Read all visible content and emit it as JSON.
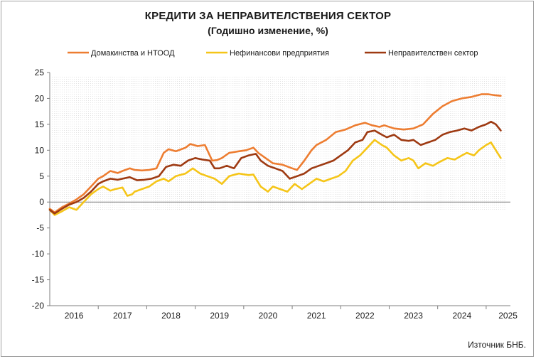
{
  "chart_data": {
    "type": "line",
    "title": "КРЕДИТИ ЗА НЕПРАВИТЕЛСТВЕНИЯ СЕКТОР",
    "subtitle": "(Годишно изменение, %)",
    "source": "Източник БНБ.",
    "ylim": [
      -20,
      25
    ],
    "yticks": [
      25,
      20,
      15,
      10,
      5,
      0,
      -5,
      -10,
      -15,
      -20
    ],
    "xlim": [
      2015.5,
      2025.0
    ],
    "xticks": [
      {
        "label": "2016",
        "pos": 2016.0
      },
      {
        "label": "2017",
        "pos": 2017.0
      },
      {
        "label": "2018",
        "pos": 2018.0
      },
      {
        "label": "2019",
        "pos": 2019.0
      },
      {
        "label": "2020",
        "pos": 2020.0
      },
      {
        "label": "2021",
        "pos": 2021.0
      },
      {
        "label": "2022",
        "pos": 2022.0
      },
      {
        "label": "2023",
        "pos": 2023.0
      },
      {
        "label": "2024",
        "pos": 2024.0
      },
      {
        "label": "2025",
        "pos": 2024.95
      }
    ],
    "grid": "vertical-dotted",
    "legend_position": "top",
    "series": [
      {
        "name": "Домакинства и НТООД",
        "color": "#ED7D31",
        "x": [
          2015.5,
          2015.6,
          2015.75,
          2015.9,
          2016.05,
          2016.2,
          2016.35,
          2016.5,
          2016.6,
          2016.75,
          2016.9,
          2017.0,
          2017.15,
          2017.25,
          2017.4,
          2017.55,
          2017.7,
          2017.85,
          2017.95,
          2018.1,
          2018.3,
          2018.4,
          2018.55,
          2018.7,
          2018.85,
          2018.95,
          2019.05,
          2019.2,
          2019.4,
          2019.55,
          2019.7,
          2019.8,
          2019.95,
          2020.1,
          2020.3,
          2020.5,
          2020.6,
          2020.75,
          2020.9,
          2021.0,
          2021.2,
          2021.4,
          2021.6,
          2021.8,
          2022.0,
          2022.15,
          2022.3,
          2022.4,
          2022.6,
          2022.8,
          2023.0,
          2023.2,
          2023.4,
          2023.6,
          2023.8,
          2024.0,
          2024.2,
          2024.4,
          2024.55,
          2024.7,
          2024.8
        ],
        "values": [
          -1.3,
          -2.0,
          -1.0,
          -0.3,
          0.5,
          1.5,
          3.0,
          4.5,
          5.0,
          6.0,
          5.6,
          6.0,
          6.5,
          6.2,
          6.1,
          6.2,
          6.5,
          9.5,
          10.2,
          9.8,
          10.5,
          11.2,
          10.8,
          11.0,
          8.0,
          8.1,
          8.5,
          9.5,
          9.8,
          10.0,
          10.5,
          9.5,
          8.5,
          7.5,
          7.2,
          6.5,
          6.2,
          8.0,
          10.0,
          11.0,
          12.0,
          13.5,
          14.0,
          14.8,
          15.3,
          14.8,
          14.5,
          14.8,
          14.2,
          14.0,
          14.2,
          15.0,
          17.0,
          18.5,
          19.5,
          20.0,
          20.3,
          20.8,
          20.8,
          20.6,
          20.5
        ]
      },
      {
        "name": "Нефинансови предприятия",
        "color": "#F5C518",
        "x": [
          2015.5,
          2015.6,
          2015.75,
          2015.9,
          2016.05,
          2016.2,
          2016.35,
          2016.5,
          2016.6,
          2016.75,
          2016.85,
          2017.0,
          2017.1,
          2017.2,
          2017.25,
          2017.4,
          2017.55,
          2017.7,
          2017.85,
          2017.95,
          2018.1,
          2018.3,
          2018.45,
          2018.6,
          2018.75,
          2018.9,
          2019.05,
          2019.2,
          2019.4,
          2019.6,
          2019.7,
          2019.85,
          2020.0,
          2020.1,
          2020.25,
          2020.4,
          2020.55,
          2020.7,
          2020.85,
          2021.0,
          2021.15,
          2021.3,
          2021.45,
          2021.6,
          2021.75,
          2021.9,
          2022.05,
          2022.2,
          2022.35,
          2022.45,
          2022.6,
          2022.75,
          2022.9,
          2023.0,
          2023.1,
          2023.25,
          2023.4,
          2023.55,
          2023.7,
          2023.85,
          2024.0,
          2024.1,
          2024.25,
          2024.35,
          2024.5,
          2024.6,
          2024.7,
          2024.8
        ],
        "values": [
          -1.5,
          -2.5,
          -1.8,
          -1.0,
          -1.5,
          0.0,
          1.5,
          2.5,
          3.0,
          2.2,
          2.5,
          2.8,
          1.2,
          1.5,
          2.0,
          2.5,
          3.0,
          4.0,
          4.5,
          4.0,
          5.0,
          5.5,
          6.5,
          5.5,
          5.0,
          4.5,
          3.5,
          5.0,
          5.5,
          5.2,
          5.3,
          3.0,
          2.0,
          3.0,
          2.5,
          2.0,
          3.5,
          2.5,
          3.5,
          4.5,
          4.0,
          4.5,
          5.0,
          6.0,
          8.0,
          9.0,
          10.5,
          12.0,
          11.0,
          10.5,
          9.0,
          8.0,
          8.5,
          8.0,
          6.5,
          7.5,
          7.0,
          7.8,
          8.5,
          8.2,
          9.0,
          9.5,
          9.0,
          10.0,
          11.0,
          11.5,
          10.0,
          8.5
        ]
      },
      {
        "name": "Неправителствен сектор",
        "color": "#9E3A12",
        "x": [
          2015.5,
          2015.6,
          2015.75,
          2015.9,
          2016.05,
          2016.2,
          2016.35,
          2016.5,
          2016.6,
          2016.75,
          2016.9,
          2017.0,
          2017.15,
          2017.3,
          2017.45,
          2017.6,
          2017.75,
          2017.9,
          2018.05,
          2018.2,
          2018.35,
          2018.5,
          2018.65,
          2018.8,
          2018.9,
          2019.0,
          2019.15,
          2019.3,
          2019.45,
          2019.6,
          2019.75,
          2019.85,
          2020.0,
          2020.15,
          2020.3,
          2020.45,
          2020.6,
          2020.75,
          2020.9,
          2021.05,
          2021.2,
          2021.35,
          2021.5,
          2021.65,
          2021.8,
          2021.95,
          2022.05,
          2022.2,
          2022.35,
          2022.45,
          2022.6,
          2022.75,
          2022.9,
          2023.0,
          2023.15,
          2023.3,
          2023.45,
          2023.6,
          2023.75,
          2023.9,
          2024.05,
          2024.2,
          2024.35,
          2024.5,
          2024.6,
          2024.7,
          2024.8
        ],
        "values": [
          -1.5,
          -2.2,
          -1.3,
          -0.5,
          0.0,
          0.8,
          2.0,
          3.5,
          4.0,
          4.5,
          4.3,
          4.5,
          4.8,
          4.2,
          4.3,
          4.5,
          5.0,
          6.8,
          7.2,
          7.0,
          8.0,
          8.5,
          8.2,
          8.0,
          6.5,
          6.5,
          7.0,
          6.5,
          8.5,
          9.0,
          9.3,
          8.0,
          7.0,
          6.5,
          6.0,
          4.5,
          5.0,
          5.5,
          6.5,
          7.0,
          7.5,
          8.0,
          9.0,
          10.0,
          11.5,
          12.0,
          13.5,
          13.8,
          13.0,
          12.5,
          13.0,
          12.0,
          11.8,
          12.0,
          11.0,
          11.5,
          12.0,
          13.0,
          13.5,
          13.8,
          14.2,
          13.8,
          14.5,
          15.0,
          15.5,
          15.0,
          13.8
        ]
      }
    ]
  }
}
